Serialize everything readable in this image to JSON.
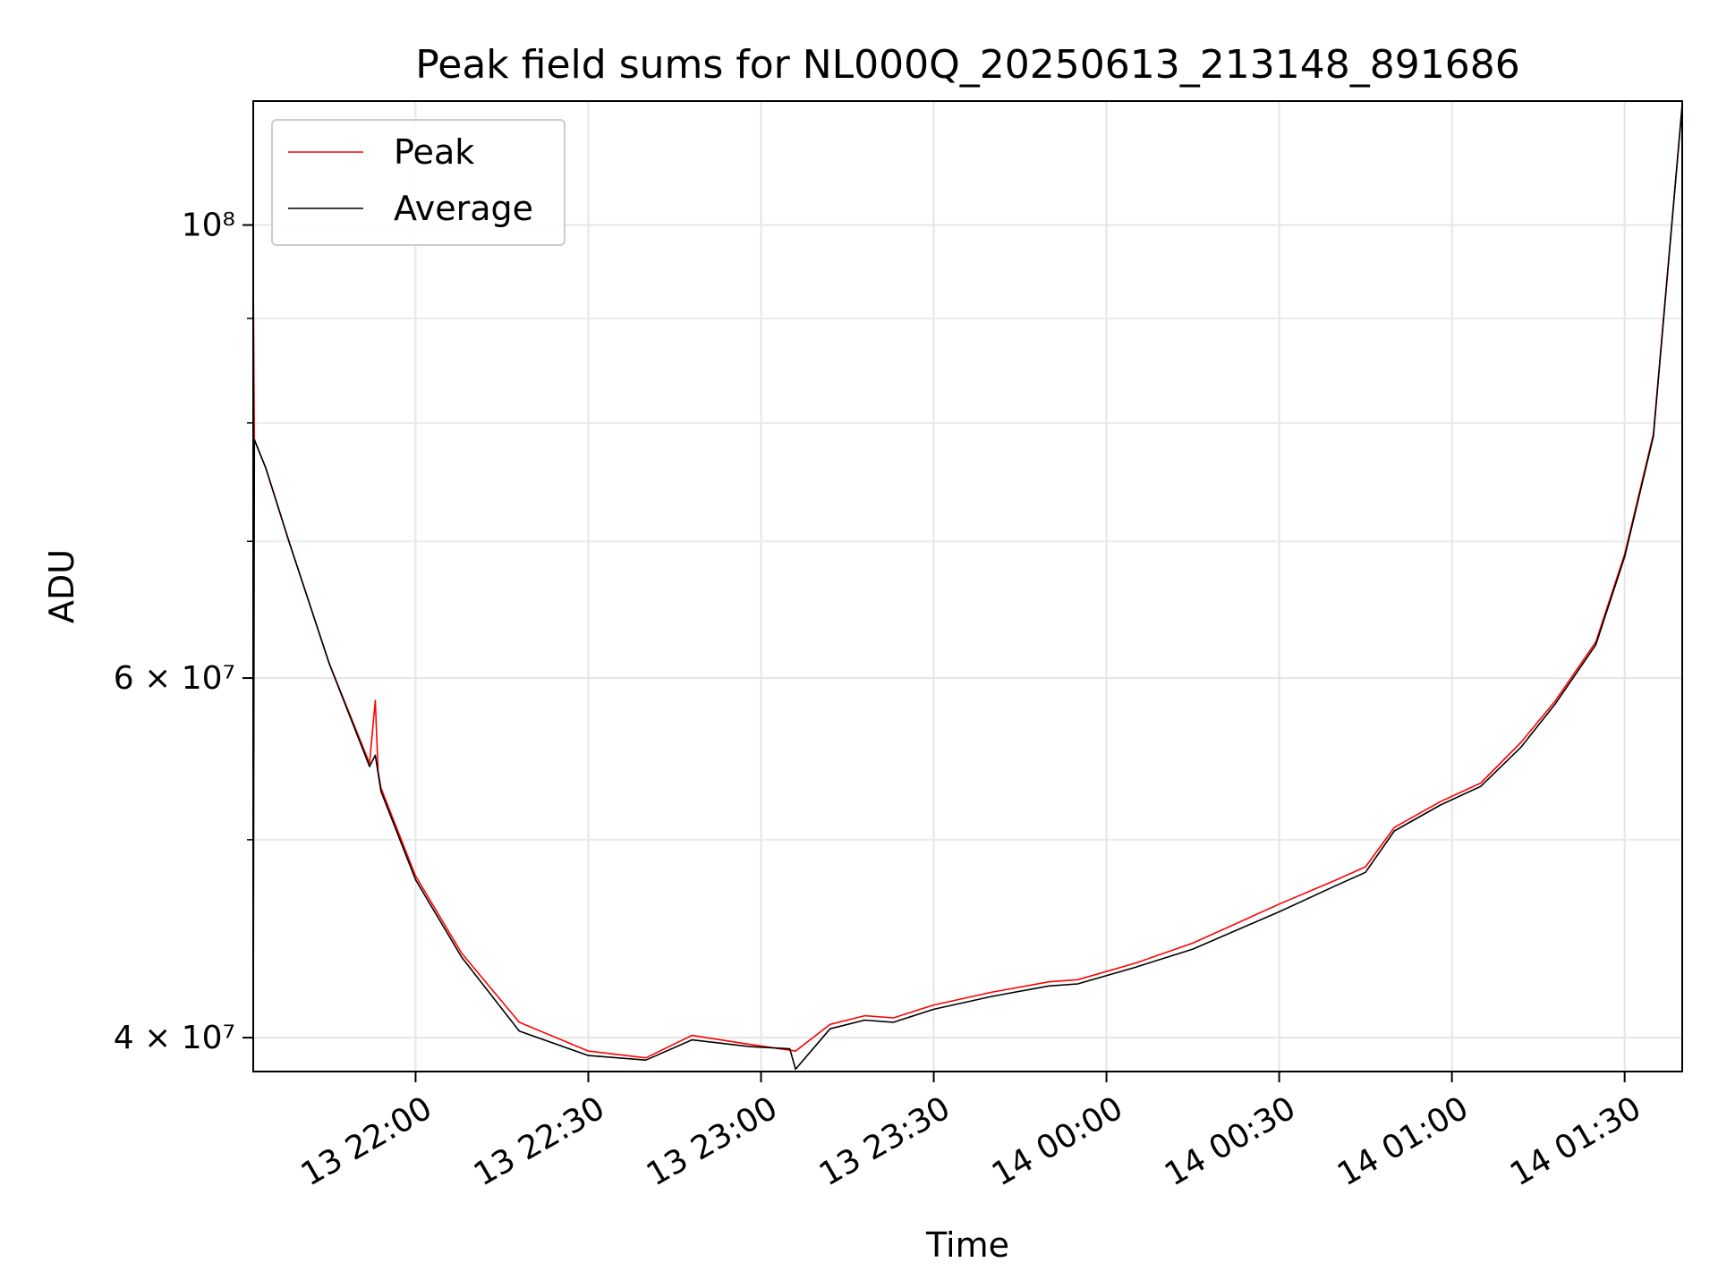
{
  "chart_data": {
    "type": "line",
    "title": "Peak field sums for NL000Q_20250613_213148_891686",
    "xlabel": "Time",
    "ylabel": "ADU",
    "yscale": "log",
    "ylim": [
      38500000,
      115000000
    ],
    "xlim": [
      "13 21:31:48",
      "14 01:40:00"
    ],
    "grid": true,
    "legend": {
      "placement": "top-left"
    },
    "x_ticks": [
      "13 22:00",
      "13 22:30",
      "13 23:00",
      "13 23:30",
      "14 00:00",
      "14 00:30",
      "14 01:00",
      "14 01:30"
    ],
    "y_ticks": [
      {
        "value": 40000000,
        "label": "4 × 10⁷"
      },
      {
        "value": 60000000,
        "label": "6 × 10⁷"
      },
      {
        "value": 100000000,
        "label": "10⁸"
      }
    ],
    "y_minor_ticks": [
      50000000,
      70000000,
      80000000,
      90000000
    ],
    "series": [
      {
        "name": "Peak",
        "color": "#ff0000",
        "x": [
          "13 21:31:48",
          "13 21:32",
          "13 21:34",
          "13 21:38",
          "13 21:45",
          "13 21:52",
          "13 21:53",
          "13 21:53:30",
          "13 21:54",
          "13 22:00",
          "13 22:08",
          "13 22:18",
          "13 22:30",
          "13 22:40",
          "13 22:48",
          "13 22:58",
          "13 23:06",
          "13 23:12",
          "13 23:18",
          "13 23:23",
          "13 23:30",
          "13 23:40",
          "13 23:50",
          "13 23:55",
          "14 00:05",
          "14 00:15",
          "14 00:30",
          "14 00:40",
          "14 00:45",
          "14 00:50",
          "14 00:58",
          "14 01:05",
          "14 01:12",
          "14 01:18",
          "14 01:25",
          "14 01:30",
          "14 01:35",
          "14 01:40"
        ],
        "values": [
          95000000,
          78500000,
          76000000,
          70000000,
          61000000,
          54500000,
          58500000,
          54000000,
          53000000,
          48000000,
          44000000,
          40700000,
          39400000,
          39100000,
          40100000,
          39700000,
          39400000,
          40600000,
          41000000,
          40900000,
          41500000,
          42100000,
          42600000,
          42700000,
          43500000,
          44500000,
          46500000,
          47800000,
          48500000,
          50700000,
          52200000,
          53300000,
          55800000,
          58500000,
          62500000,
          69000000,
          79000000,
          114500000
        ]
      },
      {
        "name": "Average",
        "color": "#000000",
        "x": [
          "13 21:31:48",
          "13 21:32",
          "13 21:34",
          "13 21:38",
          "13 21:45",
          "13 21:52",
          "13 21:53",
          "13 21:54",
          "13 22:00",
          "13 22:08",
          "13 22:18",
          "13 22:30",
          "13 22:40",
          "13 22:48",
          "13 22:58",
          "13 23:05",
          "13 23:06",
          "13 23:12",
          "13 23:18",
          "13 23:23",
          "13 23:30",
          "13 23:40",
          "13 23:50",
          "13 23:55",
          "14 00:05",
          "14 00:15",
          "14 00:30",
          "14 00:40",
          "14 00:45",
          "14 00:50",
          "14 00:58",
          "14 01:05",
          "14 01:12",
          "14 01:18",
          "14 01:25",
          "14 01:30",
          "14 01:35",
          "14 01:40"
        ],
        "values": [
          38600000,
          78500000,
          76000000,
          70000000,
          61000000,
          54300000,
          55000000,
          52800000,
          47800000,
          43800000,
          40300000,
          39200000,
          39000000,
          39900000,
          39600000,
          39500000,
          38600000,
          40400000,
          40800000,
          40700000,
          41300000,
          41900000,
          42400000,
          42500000,
          43300000,
          44200000,
          46100000,
          47500000,
          48200000,
          50500000,
          52000000,
          53100000,
          55500000,
          58300000,
          62300000,
          68800000,
          78800000,
          114500000
        ]
      }
    ]
  }
}
